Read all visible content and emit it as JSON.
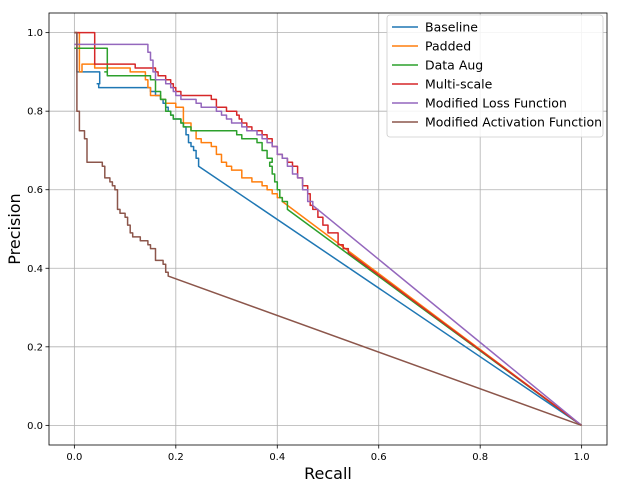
{
  "chart_data": {
    "type": "line",
    "title": "",
    "xlabel": "Recall",
    "ylabel": "Precision",
    "xlim": [
      -0.05,
      1.05
    ],
    "ylim": [
      -0.05,
      1.05
    ],
    "xticks": [
      "0.0",
      "0.2",
      "0.4",
      "0.6",
      "0.8",
      "1.0"
    ],
    "yticks": [
      "0.0",
      "0.2",
      "0.4",
      "0.6",
      "0.8",
      "1.0"
    ],
    "grid": true,
    "legend_position": "top-right",
    "colors": {
      "Baseline": "#1f77b4",
      "Padded": "#ff7f0e",
      "Data Aug": "#2ca02c",
      "Multi-scale": "#d62728",
      "Modified Loss Function": "#9467bd",
      "Modified Activation Function": "#8c564b"
    },
    "series": [
      {
        "name": "Baseline",
        "step": true,
        "points": [
          [
            0.0,
            1.0
          ],
          [
            0.005,
            0.9
          ],
          [
            0.04,
            0.9
          ],
          [
            0.05,
            0.87
          ],
          [
            0.045,
            0.87
          ],
          [
            0.048,
            0.86
          ],
          [
            0.09,
            0.86
          ],
          [
            0.14,
            0.86
          ],
          [
            0.15,
            0.85
          ],
          [
            0.16,
            0.84
          ],
          [
            0.17,
            0.83
          ],
          [
            0.175,
            0.82
          ],
          [
            0.18,
            0.81
          ],
          [
            0.185,
            0.8
          ],
          [
            0.19,
            0.79
          ],
          [
            0.195,
            0.78
          ],
          [
            0.21,
            0.77
          ],
          [
            0.215,
            0.76
          ],
          [
            0.22,
            0.74
          ],
          [
            0.225,
            0.72
          ],
          [
            0.23,
            0.71
          ],
          [
            0.235,
            0.7
          ],
          [
            0.24,
            0.68
          ],
          [
            0.245,
            0.66
          ],
          [
            1.0,
            0.0
          ]
        ]
      },
      {
        "name": "Padded",
        "step": true,
        "points": [
          [
            0.0,
            1.0
          ],
          [
            0.01,
            0.9
          ],
          [
            0.015,
            0.92
          ],
          [
            0.04,
            0.91
          ],
          [
            0.11,
            0.9
          ],
          [
            0.14,
            0.88
          ],
          [
            0.145,
            0.86
          ],
          [
            0.15,
            0.84
          ],
          [
            0.17,
            0.83
          ],
          [
            0.18,
            0.82
          ],
          [
            0.2,
            0.81
          ],
          [
            0.215,
            0.77
          ],
          [
            0.23,
            0.75
          ],
          [
            0.24,
            0.73
          ],
          [
            0.25,
            0.72
          ],
          [
            0.27,
            0.71
          ],
          [
            0.28,
            0.69
          ],
          [
            0.29,
            0.67
          ],
          [
            0.3,
            0.66
          ],
          [
            0.31,
            0.65
          ],
          [
            0.33,
            0.63
          ],
          [
            0.35,
            0.62
          ],
          [
            0.37,
            0.61
          ],
          [
            0.38,
            0.6
          ],
          [
            0.39,
            0.59
          ],
          [
            0.4,
            0.58
          ],
          [
            0.41,
            0.57
          ],
          [
            1.0,
            0.0
          ]
        ]
      },
      {
        "name": "Data Aug",
        "step": true,
        "points": [
          [
            0.0,
            0.96
          ],
          [
            0.06,
            0.96
          ],
          [
            0.065,
            0.9
          ],
          [
            0.06,
            0.9
          ],
          [
            0.065,
            0.89
          ],
          [
            0.14,
            0.89
          ],
          [
            0.15,
            0.88
          ],
          [
            0.16,
            0.85
          ],
          [
            0.17,
            0.83
          ],
          [
            0.18,
            0.8
          ],
          [
            0.19,
            0.79
          ],
          [
            0.195,
            0.78
          ],
          [
            0.21,
            0.77
          ],
          [
            0.215,
            0.76
          ],
          [
            0.23,
            0.75
          ],
          [
            0.28,
            0.75
          ],
          [
            0.32,
            0.74
          ],
          [
            0.33,
            0.73
          ],
          [
            0.36,
            0.72
          ],
          [
            0.37,
            0.7
          ],
          [
            0.38,
            0.68
          ],
          [
            0.39,
            0.67
          ],
          [
            0.385,
            0.66
          ],
          [
            0.39,
            0.64
          ],
          [
            0.395,
            0.62
          ],
          [
            0.4,
            0.6
          ],
          [
            0.405,
            0.58
          ],
          [
            0.41,
            0.57
          ],
          [
            0.42,
            0.55
          ],
          [
            1.0,
            0.0
          ]
        ]
      },
      {
        "name": "Multi-scale",
        "step": true,
        "points": [
          [
            0.0,
            1.0
          ],
          [
            0.035,
            1.0
          ],
          [
            0.04,
            0.92
          ],
          [
            0.11,
            0.92
          ],
          [
            0.12,
            0.91
          ],
          [
            0.16,
            0.9
          ],
          [
            0.165,
            0.89
          ],
          [
            0.18,
            0.88
          ],
          [
            0.19,
            0.87
          ],
          [
            0.195,
            0.86
          ],
          [
            0.2,
            0.85
          ],
          [
            0.21,
            0.84
          ],
          [
            0.27,
            0.83
          ],
          [
            0.28,
            0.81
          ],
          [
            0.3,
            0.8
          ],
          [
            0.32,
            0.79
          ],
          [
            0.325,
            0.78
          ],
          [
            0.33,
            0.77
          ],
          [
            0.34,
            0.76
          ],
          [
            0.35,
            0.75
          ],
          [
            0.37,
            0.74
          ],
          [
            0.38,
            0.73
          ],
          [
            0.39,
            0.71
          ],
          [
            0.4,
            0.69
          ],
          [
            0.41,
            0.68
          ],
          [
            0.42,
            0.67
          ],
          [
            0.43,
            0.66
          ],
          [
            0.44,
            0.63
          ],
          [
            0.45,
            0.61
          ],
          [
            0.46,
            0.59
          ],
          [
            0.465,
            0.56
          ],
          [
            0.47,
            0.55
          ],
          [
            0.48,
            0.53
          ],
          [
            0.49,
            0.51
          ],
          [
            0.5,
            0.49
          ],
          [
            0.52,
            0.46
          ],
          [
            0.53,
            0.45
          ],
          [
            0.54,
            0.44
          ],
          [
            1.0,
            0.0
          ]
        ]
      },
      {
        "name": "Modified Loss Function",
        "step": true,
        "points": [
          [
            0.0,
            0.97
          ],
          [
            0.14,
            0.97
          ],
          [
            0.145,
            0.95
          ],
          [
            0.15,
            0.93
          ],
          [
            0.155,
            0.9
          ],
          [
            0.16,
            0.88
          ],
          [
            0.18,
            0.87
          ],
          [
            0.19,
            0.86
          ],
          [
            0.195,
            0.85
          ],
          [
            0.2,
            0.84
          ],
          [
            0.21,
            0.83
          ],
          [
            0.24,
            0.82
          ],
          [
            0.25,
            0.81
          ],
          [
            0.28,
            0.8
          ],
          [
            0.29,
            0.79
          ],
          [
            0.3,
            0.78
          ],
          [
            0.31,
            0.77
          ],
          [
            0.33,
            0.76
          ],
          [
            0.34,
            0.75
          ],
          [
            0.36,
            0.74
          ],
          [
            0.37,
            0.73
          ],
          [
            0.38,
            0.72
          ],
          [
            0.39,
            0.71
          ],
          [
            0.4,
            0.69
          ],
          [
            0.41,
            0.68
          ],
          [
            0.42,
            0.66
          ],
          [
            0.43,
            0.64
          ],
          [
            0.44,
            0.63
          ],
          [
            0.45,
            0.6
          ],
          [
            0.46,
            0.57
          ],
          [
            0.47,
            0.56
          ],
          [
            1.0,
            0.0
          ]
        ]
      },
      {
        "name": "Modified Activation Function",
        "step": true,
        "points": [
          [
            0.0,
            1.0
          ],
          [
            0.005,
            0.8
          ],
          [
            0.01,
            0.75
          ],
          [
            0.02,
            0.73
          ],
          [
            0.025,
            0.67
          ],
          [
            0.055,
            0.66
          ],
          [
            0.06,
            0.63
          ],
          [
            0.07,
            0.62
          ],
          [
            0.075,
            0.61
          ],
          [
            0.08,
            0.6
          ],
          [
            0.085,
            0.55
          ],
          [
            0.09,
            0.54
          ],
          [
            0.1,
            0.53
          ],
          [
            0.105,
            0.51
          ],
          [
            0.11,
            0.49
          ],
          [
            0.115,
            0.48
          ],
          [
            0.13,
            0.47
          ],
          [
            0.145,
            0.46
          ],
          [
            0.15,
            0.45
          ],
          [
            0.16,
            0.42
          ],
          [
            0.175,
            0.41
          ],
          [
            0.18,
            0.39
          ],
          [
            0.185,
            0.38
          ],
          [
            1.0,
            0.0
          ]
        ]
      }
    ]
  }
}
